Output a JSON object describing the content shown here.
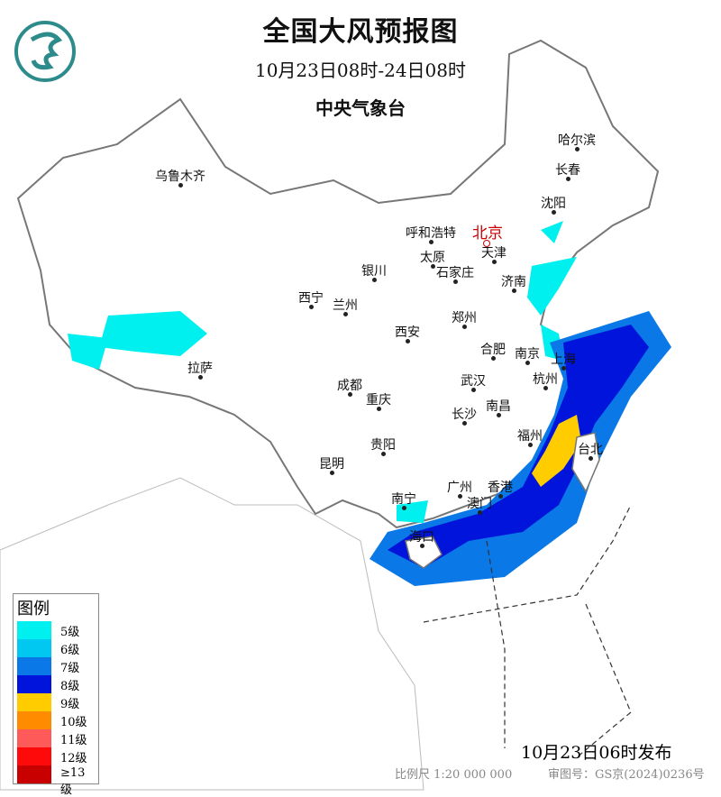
{
  "header": {
    "title": "全国大风预报图",
    "period": "10月23日08时-24日08时",
    "issuer": "中央气象台"
  },
  "logo": {
    "icon": "cma-dragon-logo",
    "color": "#2e8b8b"
  },
  "cities": [
    {
      "name": "乌鲁木齐",
      "capital": false
    },
    {
      "name": "哈尔滨",
      "capital": false
    },
    {
      "name": "长春",
      "capital": false
    },
    {
      "name": "沈阳",
      "capital": false
    },
    {
      "name": "北京",
      "capital": true
    },
    {
      "name": "呼和浩特",
      "capital": false
    },
    {
      "name": "天津",
      "capital": false
    },
    {
      "name": "银川",
      "capital": false
    },
    {
      "name": "太原",
      "capital": false
    },
    {
      "name": "石家庄",
      "capital": false
    },
    {
      "name": "济南",
      "capital": false
    },
    {
      "name": "西宁",
      "capital": false
    },
    {
      "name": "兰州",
      "capital": false
    },
    {
      "name": "郑州",
      "capital": false
    },
    {
      "name": "西安",
      "capital": false
    },
    {
      "name": "合肥",
      "capital": false
    },
    {
      "name": "南京",
      "capital": false
    },
    {
      "name": "上海",
      "capital": false
    },
    {
      "name": "拉萨",
      "capital": false
    },
    {
      "name": "成都",
      "capital": false
    },
    {
      "name": "武汉",
      "capital": false
    },
    {
      "name": "杭州",
      "capital": false
    },
    {
      "name": "重庆",
      "capital": false
    },
    {
      "name": "长沙",
      "capital": false
    },
    {
      "name": "南昌",
      "capital": false
    },
    {
      "name": "福州",
      "capital": false
    },
    {
      "name": "台北",
      "capital": false
    },
    {
      "name": "贵阳",
      "capital": false
    },
    {
      "name": "昆明",
      "capital": false
    },
    {
      "name": "南宁",
      "capital": false
    },
    {
      "name": "广州",
      "capital": false
    },
    {
      "name": "香港",
      "capital": false
    },
    {
      "name": "澳门",
      "capital": false
    },
    {
      "name": "海口",
      "capital": false
    }
  ],
  "legend": {
    "title": "图例",
    "items": [
      {
        "label": "5级",
        "color": "#00f0f0"
      },
      {
        "label": "6级",
        "color": "#00c8f0"
      },
      {
        "label": "7级",
        "color": "#0a78e6"
      },
      {
        "label": "8级",
        "color": "#0014dc"
      },
      {
        "label": "9级",
        "color": "#ffcc00"
      },
      {
        "label": "10级",
        "color": "#ff8c00"
      },
      {
        "label": "11级",
        "color": "#ff5a5a"
      },
      {
        "label": "12级",
        "color": "#ff0a0a"
      },
      {
        "label": "≥13级",
        "color": "#c80000"
      }
    ]
  },
  "footer": {
    "issued": "10月23日06时发布",
    "scale": "比例尺 1:20 000 000",
    "review_no": "审图号：GS京(2024)0236号"
  }
}
